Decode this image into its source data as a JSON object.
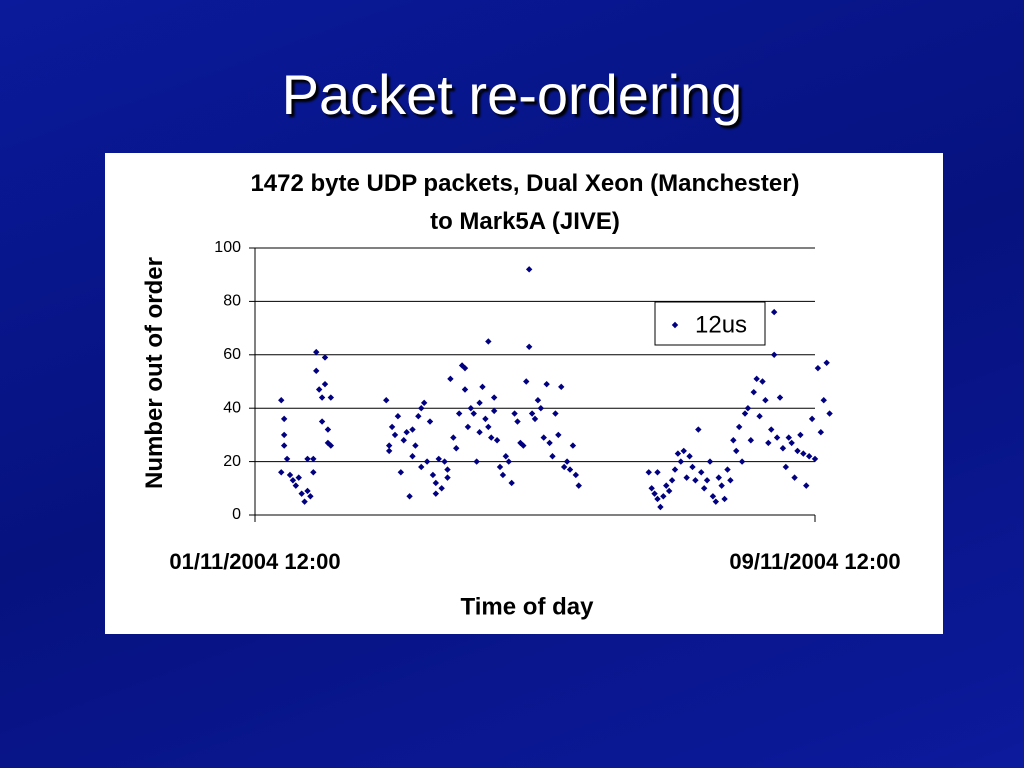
{
  "slide": {
    "title": "Packet re-ordering"
  },
  "chart_data": {
    "type": "scatter",
    "title": "1472 byte UDP packets, Dual Xeon (Manchester) to Mark5A (JIVE)",
    "x_label": "Time of day",
    "y_label": "Number out of order",
    "xlim": [
      "2004-11-01T12:00",
      "2004-11-09T12:00"
    ],
    "xticks": [
      {
        "value": "2004-11-01T12:00",
        "label": "01/11/2004 12:00"
      },
      {
        "value": "2004-11-09T12:00",
        "label": "09/11/2004 12:00"
      }
    ],
    "ylim": [
      0,
      100
    ],
    "yticks": [
      0,
      20,
      40,
      60,
      80,
      100
    ],
    "grid": true,
    "legend": "upper right",
    "x": [
      "2004-11-01T21:00",
      "2004-11-01T22:00",
      "2004-11-01T22:00",
      "2004-11-01T21:00",
      "2004-11-01T22:00",
      "2004-11-01T23:00",
      "2004-11-02T00:00",
      "2004-11-02T01:00",
      "2004-11-02T02:00",
      "2004-11-02T03:00",
      "2004-11-02T04:00",
      "2004-11-02T05:00",
      "2004-11-02T06:00",
      "2004-11-02T06:00",
      "2004-11-02T07:00",
      "2004-11-02T08:00",
      "2004-11-02T08:00",
      "2004-11-02T09:00",
      "2004-11-02T09:00",
      "2004-11-02T10:00",
      "2004-11-02T11:00",
      "2004-11-02T11:00",
      "2004-11-02T12:00",
      "2004-11-02T12:00",
      "2004-11-02T13:00",
      "2004-11-02T13:00",
      "2004-11-02T14:00",
      "2004-11-02T14:00",
      "2004-11-03T09:00",
      "2004-11-03T10:00",
      "2004-11-03T10:00",
      "2004-11-03T11:00",
      "2004-11-03T12:00",
      "2004-11-03T13:00",
      "2004-11-03T14:00",
      "2004-11-03T15:00",
      "2004-11-03T16:00",
      "2004-11-03T17:00",
      "2004-11-03T18:00",
      "2004-11-03T18:00",
      "2004-11-03T19:00",
      "2004-11-03T20:00",
      "2004-11-03T21:00",
      "2004-11-03T21:00",
      "2004-11-03T22:00",
      "2004-11-03T23:00",
      "2004-11-04T00:00",
      "2004-11-04T01:00",
      "2004-11-04T02:00",
      "2004-11-04T02:00",
      "2004-11-04T03:00",
      "2004-11-04T04:00",
      "2004-11-04T05:00",
      "2004-11-04T06:00",
      "2004-11-04T06:00",
      "2004-11-04T07:00",
      "2004-11-04T08:00",
      "2004-11-04T09:00",
      "2004-11-04T10:00",
      "2004-11-04T11:00",
      "2004-11-04T12:00",
      "2004-11-04T12:00",
      "2004-11-04T13:00",
      "2004-11-04T14:00",
      "2004-11-04T15:00",
      "2004-11-04T16:00",
      "2004-11-04T17:00",
      "2004-11-04T17:00",
      "2004-11-04T18:00",
      "2004-11-04T19:00",
      "2004-11-04T20:00",
      "2004-11-04T20:00",
      "2004-11-04T21:00",
      "2004-11-04T22:00",
      "2004-11-04T22:00",
      "2004-11-04T23:00",
      "2004-11-05T00:00",
      "2004-11-05T01:00",
      "2004-11-05T02:00",
      "2004-11-05T03:00",
      "2004-11-05T04:00",
      "2004-11-05T05:00",
      "2004-11-05T06:00",
      "2004-11-05T07:00",
      "2004-11-05T08:00",
      "2004-11-05T09:00",
      "2004-11-05T10:00",
      "2004-11-05T10:00",
      "2004-11-05T11:00",
      "2004-11-05T12:00",
      "2004-11-05T13:00",
      "2004-11-05T14:00",
      "2004-11-05T15:00",
      "2004-11-05T16:00",
      "2004-11-05T17:00",
      "2004-11-05T18:00",
      "2004-11-05T19:00",
      "2004-11-05T20:00",
      "2004-11-05T21:00",
      "2004-11-05T22:00",
      "2004-11-05T23:00",
      "2004-11-06T00:00",
      "2004-11-06T01:00",
      "2004-11-06T02:00",
      "2004-11-06T03:00",
      "2004-11-07T03:00",
      "2004-11-07T04:00",
      "2004-11-07T05:00",
      "2004-11-07T06:00",
      "2004-11-07T06:00",
      "2004-11-07T07:00",
      "2004-11-07T08:00",
      "2004-11-07T09:00",
      "2004-11-07T10:00",
      "2004-11-07T11:00",
      "2004-11-07T12:00",
      "2004-11-07T13:00",
      "2004-11-07T14:00",
      "2004-11-07T15:00",
      "2004-11-07T16:00",
      "2004-11-07T17:00",
      "2004-11-07T18:00",
      "2004-11-07T19:00",
      "2004-11-07T20:00",
      "2004-11-07T21:00",
      "2004-11-07T22:00",
      "2004-11-07T23:00",
      "2004-11-08T00:00",
      "2004-11-08T01:00",
      "2004-11-08T02:00",
      "2004-11-08T03:00",
      "2004-11-08T04:00",
      "2004-11-08T05:00",
      "2004-11-08T06:00",
      "2004-11-08T07:00",
      "2004-11-08T08:00",
      "2004-11-08T09:00",
      "2004-11-08T10:00",
      "2004-11-08T11:00",
      "2004-11-08T12:00",
      "2004-11-08T13:00",
      "2004-11-08T14:00",
      "2004-11-08T15:00",
      "2004-11-08T16:00",
      "2004-11-08T17:00",
      "2004-11-08T18:00",
      "2004-11-08T19:00",
      "2004-11-08T20:00",
      "2004-11-08T21:00",
      "2004-11-08T22:00",
      "2004-11-08T22:00",
      "2004-11-08T23:00",
      "2004-11-09T00:00",
      "2004-11-09T01:00",
      "2004-11-09T02:00",
      "2004-11-09T03:00",
      "2004-11-09T04:00",
      "2004-11-09T05:00",
      "2004-11-09T06:00",
      "2004-11-09T07:00",
      "2004-11-09T08:00",
      "2004-11-09T09:00",
      "2004-11-09T10:00",
      "2004-11-09T11:00",
      "2004-11-09T12:00",
      "2004-11-09T13:00",
      "2004-11-09T14:00",
      "2004-11-09T15:00",
      "2004-11-09T16:00",
      "2004-11-09T17:00"
    ],
    "series": [
      {
        "name": "12us",
        "color": "#000080",
        "values": [
          43,
          30,
          36,
          16,
          26,
          21,
          15,
          13,
          11,
          14,
          8,
          5,
          21,
          9,
          7,
          21,
          16,
          61,
          54,
          47,
          44,
          35,
          59,
          49,
          32,
          27,
          44,
          26,
          43,
          26,
          24,
          33,
          30,
          37,
          16,
          28,
          31,
          7,
          22,
          32,
          26,
          37,
          40,
          18,
          42,
          20,
          35,
          15,
          8,
          12,
          21,
          10,
          20,
          17,
          14,
          51,
          29,
          25,
          38,
          56,
          55,
          47,
          33,
          40,
          38,
          20,
          31,
          42,
          48,
          36,
          65,
          33,
          29,
          39,
          44,
          28,
          18,
          15,
          22,
          20,
          12,
          38,
          35,
          27,
          26,
          50,
          92,
          63,
          38,
          36,
          43,
          40,
          29,
          49,
          27,
          22,
          38,
          30,
          48,
          18,
          20,
          17,
          26,
          15,
          11,
          16,
          10,
          8,
          16,
          6,
          3,
          7,
          11,
          9,
          13,
          17,
          23,
          20,
          24,
          14,
          22,
          18,
          13,
          32,
          16,
          10,
          13,
          20,
          7,
          5,
          14,
          11,
          6,
          17,
          13,
          28,
          24,
          33,
          20,
          38,
          40,
          28,
          46,
          51,
          37,
          50,
          43,
          27,
          32,
          60,
          76,
          29,
          44,
          25,
          18,
          29,
          27,
          14,
          24,
          30,
          23,
          11,
          22,
          36,
          21,
          55,
          31,
          43,
          57,
          38
        ]
      }
    ]
  }
}
